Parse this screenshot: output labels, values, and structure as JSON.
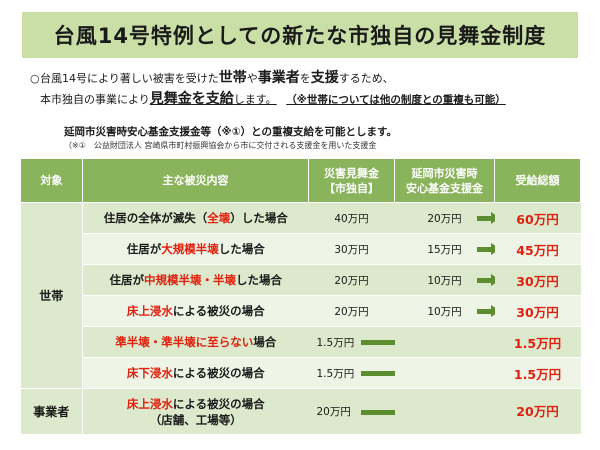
{
  "title": "台風14号特例としての新たな市独自の見舞金制度",
  "intro": {
    "bullet": "○",
    "l1_a": "台風14号により著しい被害を受けた",
    "l1_b": "世帯",
    "l1_c": "や",
    "l1_d": "事業者",
    "l1_e": "を",
    "l1_f": "支援",
    "l1_g": "するため、",
    "l2_a": "本市独自の事業により",
    "l2_b": "見舞金",
    "l2_c": "を",
    "l2_d": "支給",
    "l2_e": "します。",
    "l2_note": "（※世帯については他の制度との重複も可能）"
  },
  "duplicate_note": "延岡市災害時安心基金支援金等（※①）との重複支給を可能とします。",
  "footnote": "（※①　公益財団法人 宮崎県市町村振興協会から市に交付される支援金を用いた支援金",
  "table": {
    "headers": {
      "category": "対象",
      "damage": "主な被災内容",
      "mimai_1": "災害見舞金",
      "mimai_2": "【市独自】",
      "fund_1": "延岡市災害時",
      "fund_2": "安心基金支援金",
      "total": "受給総額"
    },
    "cat_household": "世帯",
    "cat_business": "事業者",
    "rows": [
      {
        "d_pre": "住居の全体が滅失（",
        "d_red": "全壊",
        "d_post": "）した場合",
        "mimai": "40万円",
        "fund": "20万円",
        "total": "60万円"
      },
      {
        "d_pre": "住居が",
        "d_red": "大規模半壊",
        "d_post": "した場合",
        "mimai": "30万円",
        "fund": "15万円",
        "total": "45万円"
      },
      {
        "d_pre": "住居が",
        "d_red": "中規模半壊・半壊",
        "d_post": "した場合",
        "mimai": "20万円",
        "fund": "10万円",
        "total": "30万円"
      },
      {
        "d_pre": "",
        "d_red": "床上浸水",
        "d_post": "による被災の場合",
        "mimai": "20万円",
        "fund": "10万円",
        "total": "30万円"
      },
      {
        "d_pre": "",
        "d_red": "準半壊・準半壊に至らない",
        "d_post": "場合",
        "mimai": "1.5万円",
        "fund": "",
        "total": "1.5万円"
      },
      {
        "d_pre": "",
        "d_red": "床下浸水",
        "d_post": "による被災の場合",
        "mimai": "1.5万円",
        "fund": "",
        "total": "1.5万円"
      },
      {
        "d_pre": "",
        "d_red": "床上浸水",
        "d_post": "による被災の場合",
        "d_line2": "（店舗、工場等）",
        "mimai": "20万円",
        "fund": "",
        "total": "20万円"
      }
    ]
  },
  "colors": {
    "header_bar": "#c9dfa6",
    "table_header": "#8ab45c",
    "arrow": "#5c8d2f",
    "emphasis": "#e0210f"
  }
}
